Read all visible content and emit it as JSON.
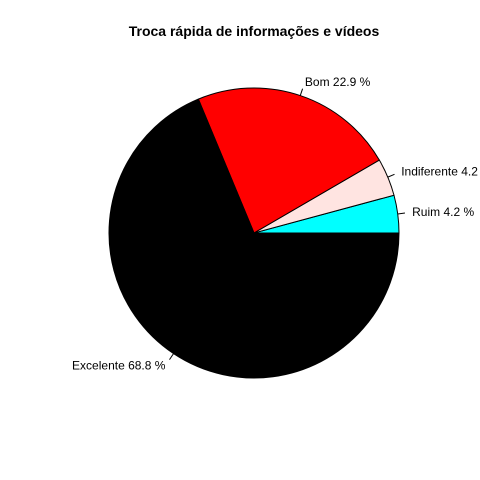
{
  "chart_data": {
    "type": "pie",
    "title": "Troca rápida de informações e vídeos",
    "slices": [
      {
        "label": "Ruim",
        "value": 4.2,
        "display": "Ruim 4.2 %",
        "color": "#00ffff"
      },
      {
        "label": "Indiferente",
        "value": 4.2,
        "display": "Indiferente 4.2",
        "color": "#ffe4e1"
      },
      {
        "label": "Bom",
        "value": 22.9,
        "display": "Bom 22.9 %",
        "color": "#ff0000"
      },
      {
        "label": "Excelente",
        "value": 68.8,
        "display": "Excelente 68.8 %",
        "color": "#000000"
      }
    ],
    "start": "3 o'clock",
    "direction": "counterclockwise"
  }
}
